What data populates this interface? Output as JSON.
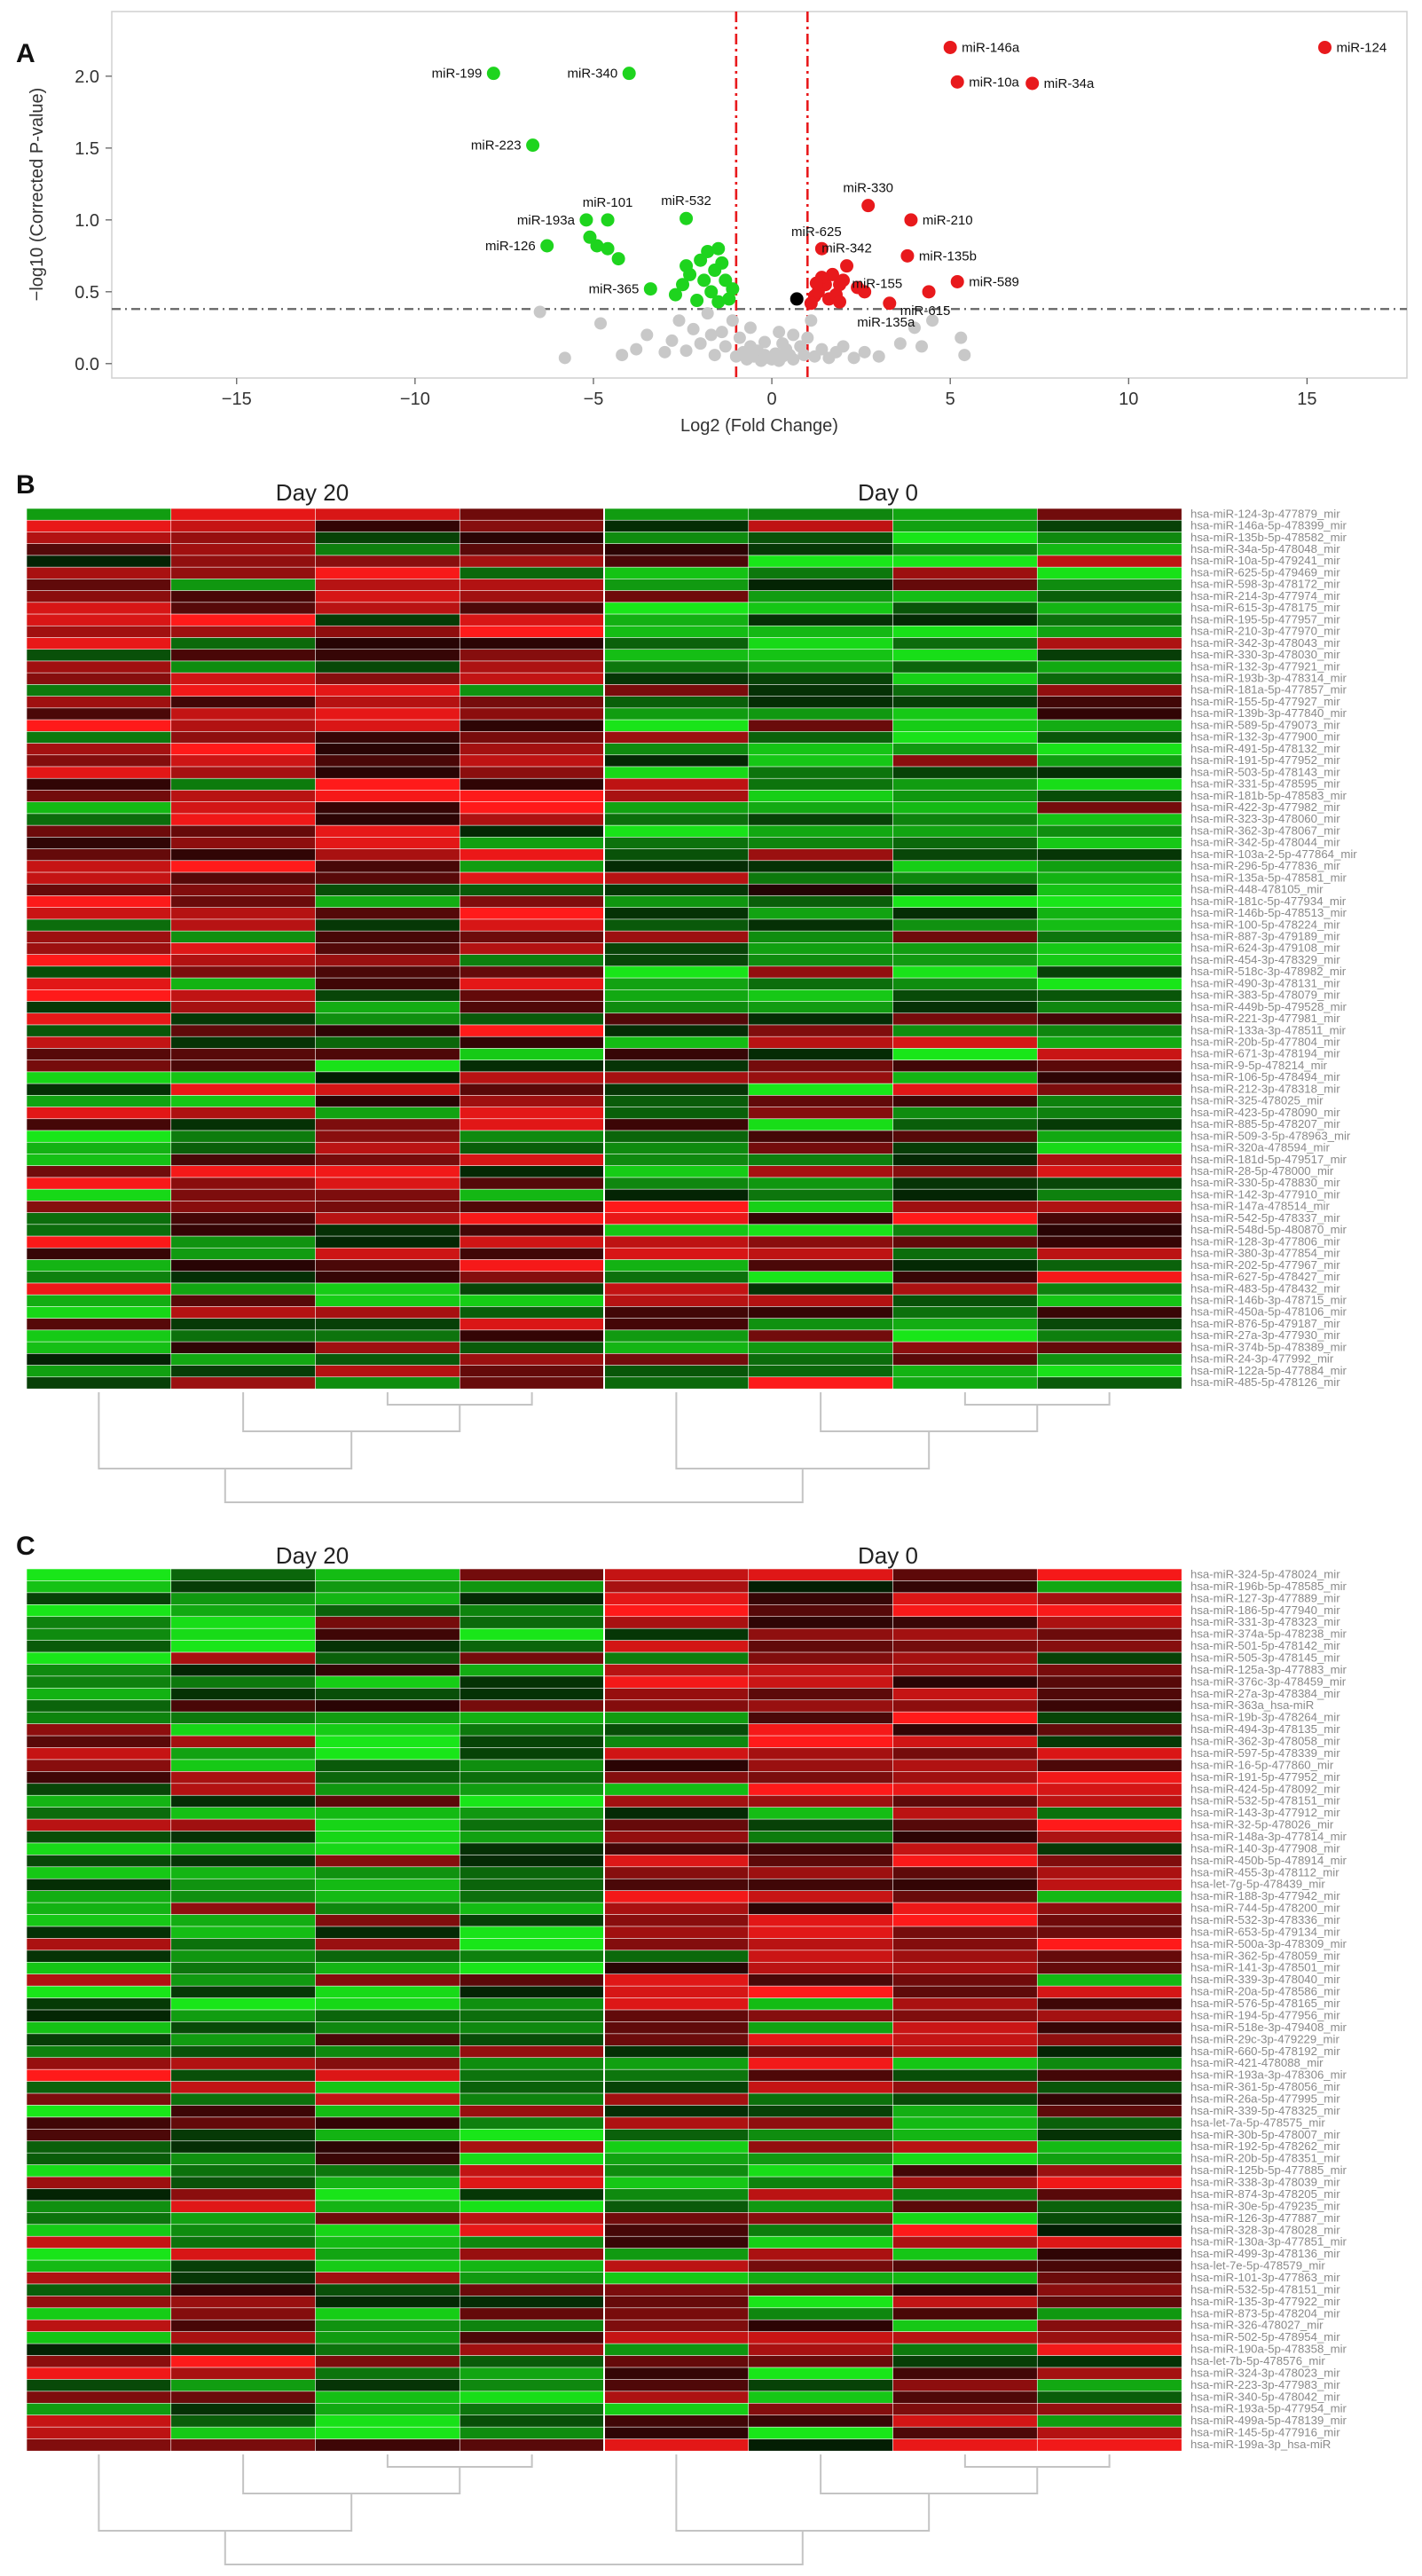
{
  "panels": {
    "a": {
      "label": "A"
    },
    "b": {
      "label": "B",
      "groups": [
        "Day 20",
        "Day 0"
      ]
    },
    "c": {
      "label": "C",
      "groups": [
        "Day 20",
        "Day 0"
      ]
    }
  },
  "colors": {
    "up": "#e8191c",
    "down": "#1ed41e",
    "nonsig": "#c8c8c8",
    "black": "#000000",
    "threshold": "#e8191c",
    "pcut": "#666666",
    "heat_high": "#ff1a1a",
    "heat_mid": "#000000",
    "heat_low": "#19e619",
    "dendro": "#c4c4c4"
  },
  "chart_data": [
    {
      "type": "scatter",
      "title": "",
      "xlabel": "Log2 (Fold Change)",
      "ylabel": "−log10 (Corrected P-value)",
      "xlim": [
        -18.5,
        17.8
      ],
      "ylim": [
        -0.1,
        2.45
      ],
      "xticks": [
        -15,
        -10,
        -5,
        0,
        5,
        10,
        15
      ],
      "yticks": [
        0.0,
        0.5,
        1.0,
        1.5,
        2.0
      ],
      "grid": false,
      "fold_change_thresholds": [
        -1,
        1
      ],
      "pvalue_threshold": 0.38,
      "labeled_points": [
        {
          "label": "miR-124",
          "x": 15.5,
          "y": 2.2,
          "group": "up"
        },
        {
          "label": "miR-146a",
          "x": 5.0,
          "y": 2.2,
          "group": "up"
        },
        {
          "label": "miR-10a",
          "x": 5.2,
          "y": 1.96,
          "group": "up"
        },
        {
          "label": "miR-34a",
          "x": 7.3,
          "y": 1.95,
          "group": "up"
        },
        {
          "label": "miR-330",
          "x": 2.7,
          "y": 1.1,
          "group": "up"
        },
        {
          "label": "miR-210",
          "x": 3.9,
          "y": 1.0,
          "group": "up"
        },
        {
          "label": "miR-625",
          "x": 1.4,
          "y": 0.8,
          "group": "up"
        },
        {
          "label": "miR-342",
          "x": 2.1,
          "y": 0.68,
          "group": "up"
        },
        {
          "label": "miR-135b",
          "x": 3.8,
          "y": 0.75,
          "group": "up"
        },
        {
          "label": "miR-155",
          "x": 1.9,
          "y": 0.55,
          "group": "up"
        },
        {
          "label": "miR-589",
          "x": 5.2,
          "y": 0.57,
          "group": "up"
        },
        {
          "label": "miR-615",
          "x": 4.4,
          "y": 0.5,
          "group": "up"
        },
        {
          "label": "miR-135a",
          "x": 3.3,
          "y": 0.42,
          "group": "up"
        },
        {
          "label": "miR-199",
          "x": -7.8,
          "y": 2.02,
          "group": "down"
        },
        {
          "label": "miR-340",
          "x": -4.0,
          "y": 2.02,
          "group": "down"
        },
        {
          "label": "miR-223",
          "x": -6.7,
          "y": 1.52,
          "group": "down"
        },
        {
          "label": "miR-101",
          "x": -4.6,
          "y": 1.0,
          "group": "down"
        },
        {
          "label": "miR-193a",
          "x": -5.2,
          "y": 1.0,
          "group": "down"
        },
        {
          "label": "miR-532",
          "x": -2.4,
          "y": 1.01,
          "group": "down"
        },
        {
          "label": "miR-126",
          "x": -6.3,
          "y": 0.82,
          "group": "down"
        },
        {
          "label": "miR-365",
          "x": -3.4,
          "y": 0.52,
          "group": "down"
        }
      ],
      "up_points": [
        [
          1.2,
          0.47
        ],
        [
          1.5,
          0.55
        ],
        [
          1.7,
          0.62
        ],
        [
          1.3,
          0.5
        ],
        [
          2.4,
          0.53
        ],
        [
          1.1,
          0.42
        ],
        [
          1.6,
          0.45
        ],
        [
          2.0,
          0.58
        ],
        [
          2.6,
          0.5
        ],
        [
          1.4,
          0.6
        ],
        [
          1.8,
          0.48
        ],
        [
          1.25,
          0.56
        ],
        [
          1.9,
          0.43
        ]
      ],
      "down_points": [
        [
          -4.9,
          0.82
        ],
        [
          -4.6,
          0.8
        ],
        [
          -4.3,
          0.73
        ],
        [
          -5.1,
          0.88
        ],
        [
          -2.0,
          0.72
        ],
        [
          -1.8,
          0.78
        ],
        [
          -1.5,
          0.8
        ],
        [
          -2.3,
          0.62
        ],
        [
          -2.5,
          0.55
        ],
        [
          -1.7,
          0.5
        ],
        [
          -1.3,
          0.58
        ],
        [
          -1.2,
          0.45
        ],
        [
          -2.1,
          0.44
        ],
        [
          -1.6,
          0.65
        ],
        [
          -1.4,
          0.7
        ],
        [
          -2.4,
          0.68
        ],
        [
          -1.9,
          0.58
        ],
        [
          -1.1,
          0.52
        ],
        [
          -2.7,
          0.48
        ],
        [
          -1.5,
          0.43
        ]
      ],
      "black_points": [
        [
          0.7,
          0.45
        ]
      ],
      "nonsig_points": [
        [
          -6.5,
          0.36
        ],
        [
          -4.8,
          0.28
        ],
        [
          -3.5,
          0.2
        ],
        [
          -3.0,
          0.08
        ],
        [
          -2.6,
          0.3
        ],
        [
          -2.2,
          0.24
        ],
        [
          -2.0,
          0.14
        ],
        [
          -1.8,
          0.35
        ],
        [
          -1.6,
          0.06
        ],
        [
          -1.4,
          0.22
        ],
        [
          -1.3,
          0.12
        ],
        [
          -1.1,
          0.3
        ],
        [
          -1.0,
          0.05
        ],
        [
          -0.9,
          0.18
        ],
        [
          -0.8,
          0.08
        ],
        [
          -0.7,
          0.03
        ],
        [
          -0.6,
          0.12
        ],
        [
          -0.5,
          0.05
        ],
        [
          -0.4,
          0.09
        ],
        [
          -0.3,
          0.02
        ],
        [
          -0.2,
          0.06
        ],
        [
          -0.1,
          0.04
        ],
        [
          0.0,
          0.03
        ],
        [
          0.1,
          0.07
        ],
        [
          0.2,
          0.02
        ],
        [
          0.3,
          0.05
        ],
        [
          0.4,
          0.1
        ],
        [
          0.5,
          0.06
        ],
        [
          0.6,
          0.03
        ],
        [
          0.8,
          0.12
        ],
        [
          0.9,
          0.06
        ],
        [
          1.0,
          0.18
        ],
        [
          1.2,
          0.05
        ],
        [
          1.4,
          0.1
        ],
        [
          1.6,
          0.04
        ],
        [
          1.8,
          0.08
        ],
        [
          2.0,
          0.12
        ],
        [
          2.3,
          0.04
        ],
        [
          2.6,
          0.08
        ],
        [
          3.0,
          0.05
        ],
        [
          3.6,
          0.14
        ],
        [
          4.0,
          0.25
        ],
        [
          4.2,
          0.12
        ],
        [
          4.5,
          0.3
        ],
        [
          5.3,
          0.18
        ],
        [
          5.4,
          0.06
        ],
        [
          -5.8,
          0.04
        ],
        [
          -4.2,
          0.06
        ],
        [
          -3.8,
          0.1
        ],
        [
          -2.8,
          0.16
        ],
        [
          -2.4,
          0.09
        ],
        [
          -1.7,
          0.2
        ],
        [
          0.6,
          0.2
        ],
        [
          1.1,
          0.3
        ],
        [
          -0.6,
          0.25
        ],
        [
          -0.2,
          0.15
        ],
        [
          0.3,
          0.14
        ],
        [
          0.2,
          0.22
        ]
      ]
    },
    {
      "type": "heatmap",
      "groups": [
        "Day 20",
        "Day 0"
      ],
      "columns": 8,
      "value_scale": "color: red = high, black = mid, green = low",
      "rows": [
        "hsa-miR-124-3p-477879_mir",
        "hsa-miR-146a-5p-478399_mir",
        "hsa-miR-135b-5p-478582_mir",
        "hsa-miR-34a-5p-478048_mir",
        "hsa-miR-10a-5p-479241_mir",
        "hsa-miR-625-5p-479469_mir",
        "hsa-miR-598-3p-478172_mir",
        "hsa-miR-214-3p-477974_mir",
        "hsa-miR-615-3p-478175_mir",
        "hsa-miR-195-5p-477957_mir",
        "hsa-miR-210-3p-477970_mir",
        "hsa-miR-342-3p-478043_mir",
        "hsa-miR-330-3p-478030_mir",
        "hsa-miR-132-3p-477921_mir",
        "hsa-miR-193b-3p-478314_mir",
        "hsa-miR-181a-5p-477857_mir",
        "hsa-miR-155-5p-477927_mir",
        "hsa-miR-139b-3p-477840_mir",
        "hsa-miR-589-5p-479073_mir",
        "hsa-miR-132-3p-477900_mir",
        "hsa-miR-491-5p-478132_mir",
        "hsa-miR-191-5p-477952_mir",
        "hsa-miR-503-5p-478143_mir",
        "hsa-miR-331-5p-478595_mir",
        "hsa-miR-181b-5p-478583_mir",
        "hsa-miR-422-3p-477982_mir",
        "hsa-miR-323-3p-478060_mir",
        "hsa-miR-362-3p-478067_mir",
        "hsa-miR-342-5p-478044_mir",
        "hsa-miR-103a-2-5p-477864_mir",
        "hsa-miR-296-5p-477836_mir",
        "hsa-miR-135a-5p-478581_mir",
        "hsa-miR-448-478105_mir",
        "hsa-miR-181c-5p-477934_mir",
        "hsa-miR-146b-5p-478513_mir",
        "hsa-miR-100-5p-478224_mir",
        "hsa-miR-887-3p-479189_mir",
        "hsa-miR-624-3p-479108_mir",
        "hsa-miR-454-3p-478329_mir",
        "hsa-miR-518c-3p-478982_mir",
        "hsa-miR-490-3p-478131_mir",
        "hsa-miR-383-5p-478079_mir",
        "hsa-miR-449b-5p-479528_mir",
        "hsa-miR-221-3p-477981_mir",
        "hsa-miR-133a-3p-478511_mir",
        "hsa-miR-20b-5p-477804_mir",
        "hsa-miR-671-3p-478194_mir",
        "hsa-miR-9-5p-478214_mir",
        "hsa-miR-106-5p-478494_mir",
        "hsa-miR-212-3p-478318_mir",
        "hsa-miR-325-478025_mir",
        "hsa-miR-423-5p-478090_mir",
        "hsa-miR-885-5p-478207_mir",
        "hsa-miR-509-3-5p-478963_mir",
        "hsa-miR-320a-478594_mir",
        "hsa-miR-181d-5p-479517_mir",
        "hsa-miR-28-5p-478000_mir",
        "hsa-miR-330-5p-478830_mir",
        "hsa-miR-142-3p-477910_mir",
        "hsa-miR-147a-478514_mir",
        "hsa-miR-542-5p-478337_mir",
        "hsa-miR-548d-5p-480870_mir",
        "hsa-miR-128-3p-477806_mir",
        "hsa-miR-380-3p-477854_mir",
        "hsa-miR-202-5p-477967_mir",
        "hsa-miR-627-5p-478427_mir",
        "hsa-miR-483-5p-478432_mir",
        "hsa-miR-146b-3p-478715_mir",
        "hsa-miR-450a-5p-478106_mir",
        "hsa-miR-876-5p-479187_mir",
        "hsa-miR-27a-3p-477930_mir",
        "hsa-miR-374b-5p-478389_mir",
        "hsa-miR-24-3p-477992_mir",
        "hsa-miR-122a-5p-477884_mir",
        "hsa-miR-485-5p-478126_mir"
      ]
    },
    {
      "type": "heatmap",
      "groups": [
        "Day 20",
        "Day 0"
      ],
      "columns": 8,
      "value_scale": "color: red = high, black = mid, green = low",
      "rows": [
        "hsa-miR-324-5p-478024_mir",
        "hsa-miR-196b-5p-478585_mir",
        "hsa-miR-127-3p-477889_mir",
        "hsa-miR-186-5p-477940_mir",
        "hsa-miR-331-3p-478323_mir",
        "hsa-miR-374a-5p-478238_mir",
        "hsa-miR-501-5p-478142_mir",
        "hsa-miR-505-3p-478145_mir",
        "hsa-miR-125a-3p-477883_mir",
        "hsa-miR-376c-3p-478459_mir",
        "hsa-miR-27a-3p-478384_mir",
        "hsa-miR-363a_hsa-miR",
        "hsa-miR-19b-3p-478264_mir",
        "hsa-miR-494-3p-478135_mir",
        "hsa-miR-362-3p-478058_mir",
        "hsa-miR-597-5p-478339_mir",
        "hsa-miR-16-5p-477860_mir",
        "hsa-miR-191-5p-477952_mir",
        "hsa-miR-424-5p-478092_mir",
        "hsa-miR-532-5p-478151_mir",
        "hsa-miR-143-3p-477912_mir",
        "hsa-miR-32-5p-478026_mir",
        "hsa-miR-148a-3p-477814_mir",
        "hsa-miR-140-3p-477908_mir",
        "hsa-miR-450b-5p-478914_mir",
        "hsa-miR-455-3p-478112_mir",
        "hsa-let-7g-5p-478439_mir",
        "hsa-miR-188-3p-477942_mir",
        "hsa-miR-744-5p-478200_mir",
        "hsa-miR-532-3p-478336_mir",
        "hsa-miR-653-5p-479134_mir",
        "hsa-miR-500a-3p-478309_mir",
        "hsa-miR-362-5p-478059_mir",
        "hsa-miR-141-3p-478501_mir",
        "hsa-miR-339-3p-478040_mir",
        "hsa-miR-20a-5p-478586_mir",
        "hsa-miR-576-5p-478165_mir",
        "hsa-miR-194-5p-477956_mir",
        "hsa-miR-518e-3p-479408_mir",
        "hsa-miR-29c-3p-479229_mir",
        "hsa-miR-660-5p-478192_mir",
        "hsa-miR-421-478088_mir",
        "hsa-miR-193a-3p-478306_mir",
        "hsa-miR-361-5p-478056_mir",
        "hsa-miR-26a-5p-477995_mir",
        "hsa-miR-339-5p-478325_mir",
        "hsa-let-7a-5p-478575_mir",
        "hsa-miR-30b-5p-478007_mir",
        "hsa-miR-192-5p-478262_mir",
        "hsa-miR-20b-5p-478351_mir",
        "hsa-miR-125b-5p-477885_mir",
        "hsa-miR-338-3p-478039_mir",
        "hsa-miR-874-3p-478205_mir",
        "hsa-miR-30e-5p-479235_mir",
        "hsa-miR-126-3p-477887_mir",
        "hsa-miR-328-3p-478028_mir",
        "hsa-miR-130a-3p-477851_mir",
        "hsa-miR-499-3p-478136_mir",
        "hsa-let-7e-5p-478579_mir",
        "hsa-miR-101-3p-477863_mir",
        "hsa-miR-532-5p-478151_mir",
        "hsa-miR-135-3p-477922_mir",
        "hsa-miR-873-5p-478204_mir",
        "hsa-miR-326-478027_mir",
        "hsa-miR-502-5p-478954_mir",
        "hsa-miR-190a-5p-478358_mir",
        "hsa-let-7b-5p-478576_mir",
        "hsa-miR-324-3p-478023_mir",
        "hsa-miR-223-3p-477983_mir",
        "hsa-miR-340-5p-478042_mir",
        "hsa-miR-193a-5p-477954_mir",
        "hsa-miR-499a-5p-478139_mir",
        "hsa-miR-145-5p-477916_mir",
        "hsa-miR-199a-3p_hsa-miR"
      ]
    }
  ]
}
